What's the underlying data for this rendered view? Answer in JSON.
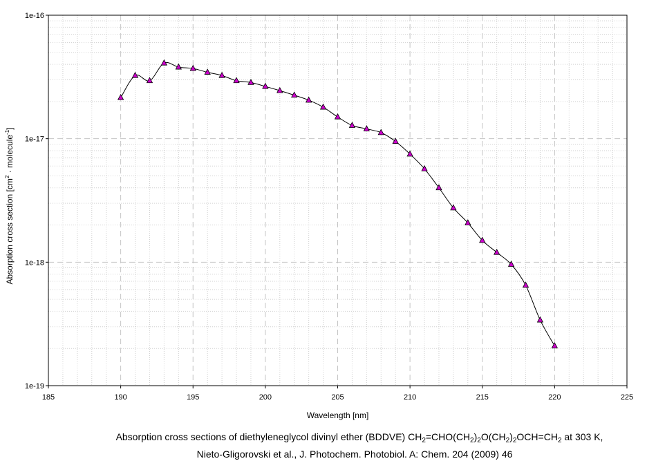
{
  "chart_data": {
    "type": "line",
    "title": "",
    "xlabel": "Wavelength [nm]",
    "ylabel_parts": {
      "text1": "Absorption cross section [cm",
      "sup1": "2",
      "text2": " · molecule",
      "sup2": "-1",
      "text3": "]"
    },
    "xlim": [
      185,
      225
    ],
    "ylim": [
      1e-19,
      1e-16
    ],
    "yscale": "log",
    "x_ticks": [
      "185",
      "190",
      "195",
      "200",
      "205",
      "210",
      "215",
      "220",
      "225"
    ],
    "y_ticks": [
      "1e-19",
      "1e-18",
      "1e-17",
      "1e-16"
    ],
    "grid": true,
    "series": [
      {
        "marker_color": "#cc00cc",
        "line_color": "#000000",
        "x": [
          190,
          191,
          192,
          193,
          194,
          195,
          196,
          197,
          198,
          199,
          200,
          201,
          202,
          203,
          204,
          205,
          206,
          207,
          208,
          209,
          210,
          211,
          212,
          213,
          214,
          215,
          216,
          217,
          218,
          219,
          220
        ],
        "y": [
          2.15e-17,
          3.25e-17,
          2.95e-17,
          4.1e-17,
          3.8e-17,
          3.7e-17,
          3.45e-17,
          3.25e-17,
          2.95e-17,
          2.85e-17,
          2.65e-17,
          2.45e-17,
          2.25e-17,
          2.05e-17,
          1.8e-17,
          1.5e-17,
          1.28e-17,
          1.2e-17,
          1.12e-17,
          9.5e-18,
          7.5e-18,
          5.7e-18,
          4e-18,
          2.75e-18,
          2.08e-18,
          1.5e-18,
          1.2e-18,
          9.6e-19,
          6.5e-19,
          3.4e-19,
          2.1e-19
        ]
      }
    ]
  },
  "caption": {
    "line1_parts": [
      "Absorption cross sections of diethyleneglycol divinyl ether (BDDVE) CH",
      "2",
      "=CHO(CH",
      "2",
      ")",
      "2",
      "O(CH",
      "2",
      ")",
      "2",
      "OCH=CH",
      "2",
      " at 303 K,"
    ],
    "line2": "Nieto-Gligorovski et al., J. Photochem. Photobiol. A: Chem. 204 (2009) 46"
  }
}
